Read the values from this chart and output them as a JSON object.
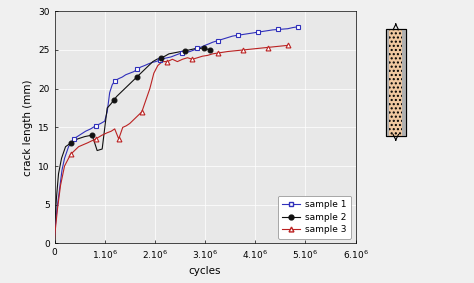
{
  "title": "",
  "xlabel": "cycles",
  "ylabel": "crack length (mm)",
  "xlim": [
    0,
    6000000.0
  ],
  "ylim": [
    0,
    30
  ],
  "xticks": [
    0,
    1000000.0,
    2000000.0,
    3000000.0,
    4000000.0,
    5000000.0,
    6000000.0
  ],
  "xtick_labels": [
    "0",
    "1.10$^6$",
    "2.10$^6$",
    "3.10$^6$",
    "4.10$^6$",
    "5.10$^6$",
    "6.10$^6$"
  ],
  "yticks": [
    0,
    5,
    10,
    15,
    20,
    25,
    30
  ],
  "sample1_color": "#3030bb",
  "sample2_color": "#111111",
  "sample3_color": "#bb2222",
  "legend_labels": [
    "sample 1",
    "sample 2",
    "sample 3"
  ],
  "background_color": "#f0f0f0",
  "plot_bg_color": "#e8e8e8",
  "grid_color": "#ffffff",
  "panel_fill": "#f0c8a0",
  "panel_strip": "#b0b0b0",
  "sample1_x": [
    0,
    20000,
    50000,
    100000,
    150000,
    200000,
    280000,
    380000,
    500000,
    620000,
    720000,
    820000,
    920000,
    1000000,
    1050000,
    1100000,
    1150000,
    1200000,
    1280000,
    1350000,
    1420000,
    1500000,
    1580000,
    1650000,
    1720000,
    1800000,
    1870000,
    1950000,
    2020000,
    2100000,
    2180000,
    2250000,
    2320000,
    2400000,
    2480000,
    2550000,
    2620000,
    2700000,
    2780000,
    2850000,
    2930000,
    3000000,
    3080000,
    3150000,
    3250000,
    3350000,
    3450000,
    3550000,
    3650000,
    3750000,
    3850000,
    3950000,
    4050000,
    4150000,
    4250000,
    4350000,
    4450000,
    4550000,
    4650000,
    4750000,
    4850000
  ],
  "sample1_y": [
    1.0,
    2.5,
    4.5,
    7.0,
    9.5,
    11.0,
    12.5,
    13.5,
    14.0,
    14.5,
    14.8,
    15.2,
    15.5,
    15.8,
    17.0,
    19.5,
    20.5,
    21.0,
    21.3,
    21.5,
    21.8,
    22.0,
    22.2,
    22.5,
    22.8,
    23.0,
    23.2,
    23.4,
    23.5,
    23.7,
    23.9,
    24.0,
    24.1,
    24.3,
    24.5,
    24.6,
    24.7,
    24.8,
    25.0,
    25.2,
    25.4,
    25.6,
    25.8,
    26.0,
    26.2,
    26.4,
    26.6,
    26.8,
    26.9,
    27.0,
    27.1,
    27.2,
    27.3,
    27.4,
    27.5,
    27.6,
    27.65,
    27.7,
    27.75,
    27.9,
    28.0
  ],
  "sample1_markers_x": [
    380000,
    820000,
    1200000,
    1650000,
    2100000,
    2550000,
    2850000,
    3250000,
    3650000,
    4050000,
    4450000,
    4850000
  ],
  "sample1_markers_y": [
    13.5,
    15.2,
    21.0,
    22.5,
    23.7,
    24.6,
    25.2,
    26.2,
    26.9,
    27.3,
    27.65,
    28.0
  ],
  "sample2_x": [
    0,
    15000,
    40000,
    80000,
    140000,
    220000,
    330000,
    460000,
    600000,
    750000,
    850000,
    950000,
    1050000,
    1120000,
    1180000,
    1240000,
    1320000,
    1400000,
    1480000,
    1560000,
    1640000,
    1720000,
    1800000,
    1880000,
    1960000,
    2040000,
    2120000,
    2200000,
    2280000,
    2360000,
    2440000,
    2520000,
    2600000,
    2680000,
    2750000,
    2820000,
    2900000,
    2980000,
    3050000,
    3100000
  ],
  "sample2_y": [
    1.8,
    3.5,
    6.0,
    9.0,
    11.0,
    12.5,
    13.0,
    13.5,
    13.8,
    14.0,
    12.0,
    12.2,
    17.5,
    18.0,
    18.5,
    19.0,
    19.5,
    20.0,
    20.5,
    21.0,
    21.5,
    22.0,
    22.5,
    23.0,
    23.5,
    23.8,
    24.0,
    24.2,
    24.5,
    24.6,
    24.7,
    24.8,
    24.9,
    25.0,
    25.1,
    25.2,
    25.2,
    25.3,
    25.1,
    25.0
  ],
  "sample2_markers_x": [
    330000,
    750000,
    1180000,
    1640000,
    2120000,
    2600000,
    2980000,
    3100000
  ],
  "sample2_markers_y": [
    13.0,
    14.0,
    18.5,
    21.5,
    24.0,
    24.9,
    25.3,
    25.0
  ],
  "sample3_x": [
    0,
    20000,
    60000,
    120000,
    200000,
    320000,
    480000,
    660000,
    820000,
    950000,
    1050000,
    1130000,
    1200000,
    1280000,
    1360000,
    1430000,
    1500000,
    1580000,
    1660000,
    1740000,
    1820000,
    1900000,
    1980000,
    2060000,
    2150000,
    2250000,
    2350000,
    2450000,
    2550000,
    2650000,
    2750000,
    2850000,
    2950000,
    3050000,
    3150000,
    3250000,
    3350000,
    3450000,
    3600000,
    3750000,
    3900000,
    4050000,
    4200000,
    4350000,
    4500000,
    4650000
  ],
  "sample3_y": [
    0.5,
    2.0,
    4.5,
    7.5,
    10.0,
    11.5,
    12.5,
    13.0,
    13.5,
    14.0,
    14.3,
    14.5,
    14.8,
    13.5,
    15.0,
    15.2,
    15.5,
    16.0,
    16.5,
    17.0,
    18.5,
    20.0,
    22.0,
    23.0,
    23.5,
    23.5,
    23.8,
    23.5,
    23.8,
    24.0,
    23.8,
    24.0,
    24.2,
    24.3,
    24.5,
    24.6,
    24.7,
    24.8,
    24.9,
    25.0,
    25.1,
    25.2,
    25.3,
    25.4,
    25.5,
    25.6
  ],
  "sample3_markers_x": [
    320000,
    820000,
    1280000,
    1740000,
    2250000,
    2750000,
    3250000,
    3750000,
    4250000,
    4650000
  ],
  "sample3_markers_y": [
    11.5,
    13.5,
    13.5,
    17.0,
    23.5,
    23.8,
    24.6,
    25.0,
    25.3,
    25.6
  ]
}
